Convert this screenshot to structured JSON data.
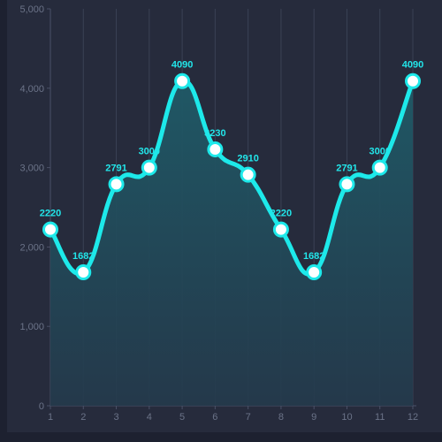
{
  "chart_data": {
    "type": "area",
    "x": [
      1,
      2,
      3,
      4,
      5,
      6,
      7,
      8,
      9,
      10,
      11,
      12
    ],
    "series": [
      {
        "values": [
          2220,
          1682,
          2791,
          3000,
          4090,
          3230,
          2910,
          2220,
          1682,
          2791,
          3000,
          4090
        ]
      }
    ],
    "data_labels": [
      "2220",
      "1682",
      "2791",
      "3000",
      "4090",
      "3230",
      "2910",
      "2220",
      "1682",
      "2791",
      "3000",
      "4090"
    ],
    "y_ticks": [
      "0",
      "1,000",
      "2,000",
      "3,000",
      "4,000",
      "5,000"
    ],
    "x_ticks": [
      "1",
      "2",
      "3",
      "4",
      "5",
      "6",
      "7",
      "8",
      "9",
      "10",
      "11",
      "12"
    ],
    "ylim": [
      0,
      5000
    ],
    "xlim": [
      1,
      12
    ],
    "title": "",
    "xlabel": "",
    "ylabel": "",
    "grid": "vertical",
    "legend": "none",
    "colors": {
      "line": "#1de9ea",
      "area_top": "#1f5a67",
      "area_bottom": "#243a4c",
      "marker_fill": "#ffffff",
      "marker_stroke": "#1de9ea",
      "background": "#262b3c"
    }
  }
}
